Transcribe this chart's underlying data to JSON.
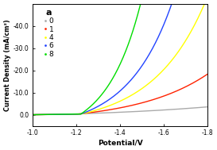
{
  "title": "a",
  "xlabel": "Potential/V",
  "ylabel": "Current Density (mA/cm²)",
  "xlim": [
    -1.0,
    -1.8
  ],
  "ylim": [
    5.0,
    -50.0
  ],
  "x_ticks": [
    -1.0,
    -1.2,
    -1.4,
    -1.6,
    -1.8
  ],
  "y_ticks": [
    0.0,
    -10.0,
    -20.0,
    -30.0,
    -40.0
  ],
  "curves": [
    {
      "label": "0",
      "color": "#aaaaaa",
      "k": 1.8,
      "onset": -1.1,
      "scale": 1.2,
      "pre": -0.5
    },
    {
      "label": "1",
      "color": "#ff2200",
      "k": 3.2,
      "onset": -1.2,
      "scale": 3.0,
      "pre": -0.8
    },
    {
      "label": "4",
      "color": "#ffff00",
      "k": 4.2,
      "onset": -1.22,
      "scale": 5.0,
      "pre": -0.9
    },
    {
      "label": "6",
      "color": "#2244ff",
      "k": 5.0,
      "onset": -1.22,
      "scale": 7.0,
      "pre": -1.0
    },
    {
      "label": "8",
      "color": "#00dd00",
      "k": 6.5,
      "onset": -1.22,
      "scale": 10.0,
      "pre": -1.1
    }
  ],
  "legend_colors": [
    "#aaaaaa",
    "#ff2200",
    "#ffff00",
    "#2244ff",
    "#00dd00"
  ],
  "background": "#ffffff",
  "figsize": [
    2.73,
    1.89
  ],
  "dpi": 100
}
